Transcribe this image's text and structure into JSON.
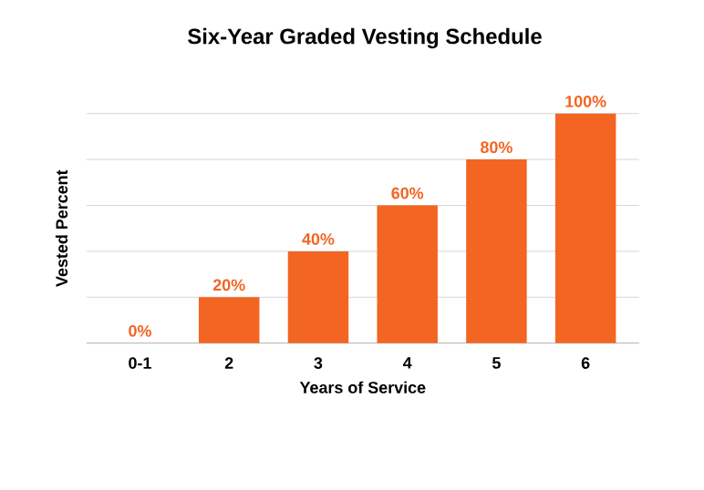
{
  "chart_data": {
    "type": "bar",
    "title": "Six-Year Graded Vesting Schedule",
    "xlabel": "Years of Service",
    "ylabel": "Vested Percent",
    "categories": [
      "0-1",
      "2",
      "3",
      "4",
      "5",
      "6"
    ],
    "values": [
      0,
      20,
      40,
      60,
      80,
      100
    ],
    "value_labels": [
      "0%",
      "20%",
      "40%",
      "60%",
      "80%",
      "100%"
    ],
    "color": "#f26522",
    "ylim": [
      0,
      100
    ],
    "yticks": [
      {
        "value": 0,
        "label": null
      },
      {
        "value": 20,
        "label": null
      },
      {
        "value": 40,
        "label": null
      },
      {
        "value": 60,
        "label": null
      },
      {
        "value": 80,
        "label": null
      },
      {
        "value": 100,
        "label": null
      }
    ],
    "tick_labels": "x",
    "grid": "y"
  }
}
